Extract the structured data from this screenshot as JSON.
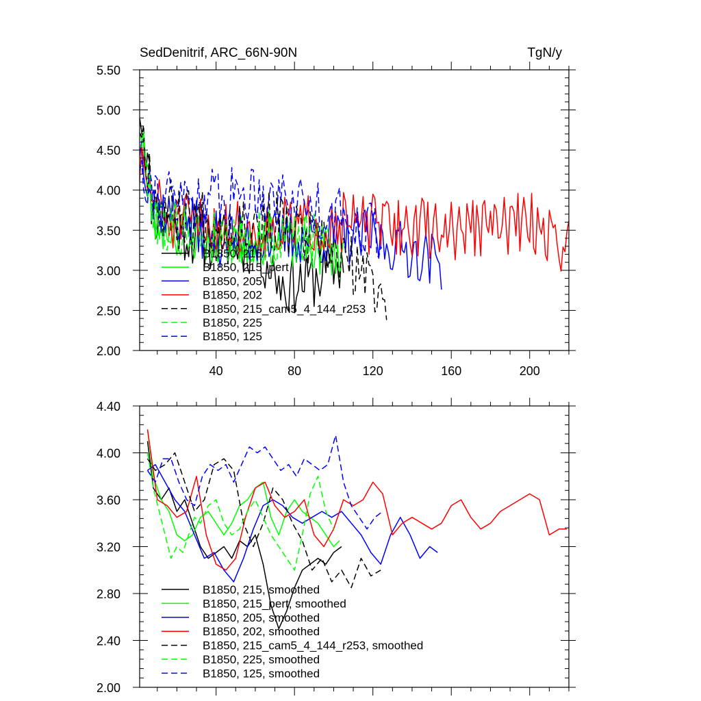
{
  "chart_data": [
    {
      "type": "line",
      "title": "SedDenitrif, ARC_66N-90N",
      "units": "TgN/y",
      "xlabel": "",
      "ylabel": "",
      "xlim": [
        1,
        220
      ],
      "ylim": [
        2.0,
        5.5
      ],
      "xticks": [
        40,
        80,
        120,
        160,
        200
      ],
      "xtick_labels": [
        "40",
        "80",
        "120",
        "160",
        "200"
      ],
      "yticks": [
        2.0,
        2.5,
        3.0,
        3.5,
        4.0,
        4.5,
        5.0,
        5.5
      ],
      "ytick_labels": [
        "2.00",
        "2.50",
        "3.00",
        "3.50",
        "4.00",
        "4.50",
        "5.00",
        "5.50"
      ],
      "legend_position": "bottom-left",
      "series": [
        {
          "name": "B1850, 215",
          "color": "#000000",
          "dash": "solid",
          "seed": 11,
          "n": 105,
          "base": [
            [
              1,
              5.1
            ],
            [
              8,
              3.7
            ],
            [
              30,
              3.4
            ],
            [
              60,
              3.3
            ],
            [
              75,
              2.8
            ],
            [
              90,
              2.9
            ],
            [
              105,
              3.1
            ]
          ],
          "amp": 0.38
        },
        {
          "name": "B1850, 215_pert",
          "color": "#00ff00",
          "dash": "solid",
          "seed": 23,
          "n": 105,
          "base": [
            [
              1,
              4.9
            ],
            [
              8,
              3.6
            ],
            [
              35,
              3.4
            ],
            [
              70,
              3.4
            ],
            [
              105,
              3.2
            ]
          ],
          "amp": 0.35
        },
        {
          "name": "B1850, 205",
          "color": "#0000ff",
          "dash": "solid",
          "seed": 37,
          "n": 155,
          "base": [
            [
              1,
              4.6
            ],
            [
              10,
              3.8
            ],
            [
              40,
              3.4
            ],
            [
              80,
              3.4
            ],
            [
              120,
              3.4
            ],
            [
              155,
              3.1
            ]
          ],
          "amp": 0.35
        },
        {
          "name": "B1850, 202",
          "color": "#ff0000",
          "dash": "solid",
          "seed": 51,
          "n": 220,
          "base": [
            [
              1,
              4.3
            ],
            [
              15,
              3.6
            ],
            [
              60,
              3.5
            ],
            [
              100,
              3.6
            ],
            [
              160,
              3.5
            ],
            [
              200,
              3.6
            ],
            [
              220,
              3.3
            ]
          ],
          "amp": 0.38
        },
        {
          "name": "B1850, 215_cam5_4_144_r253",
          "color": "#000000",
          "dash": "dashed",
          "seed": 67,
          "n": 127,
          "base": [
            [
              1,
              4.9
            ],
            [
              10,
              3.8
            ],
            [
              40,
              3.6
            ],
            [
              70,
              3.6
            ],
            [
              100,
              3.2
            ],
            [
              127,
              2.7
            ]
          ],
          "amp": 0.4
        },
        {
          "name": "B1850, 225",
          "color": "#00ff00",
          "dash": "dashed",
          "seed": 79,
          "n": 100,
          "base": [
            [
              1,
              4.7
            ],
            [
              10,
              3.6
            ],
            [
              40,
              3.4
            ],
            [
              80,
              3.4
            ],
            [
              100,
              3.3
            ]
          ],
          "amp": 0.35
        },
        {
          "name": "B1850, 125",
          "color": "#0000ff",
          "dash": "dashed",
          "seed": 91,
          "n": 125,
          "base": [
            [
              1,
              4.4
            ],
            [
              10,
              3.9
            ],
            [
              40,
              3.9
            ],
            [
              60,
              4.0
            ],
            [
              80,
              3.9
            ],
            [
              100,
              3.7
            ],
            [
              125,
              3.5
            ]
          ],
          "amp": 0.38
        }
      ]
    },
    {
      "type": "line",
      "title": "",
      "units": "",
      "xlabel": "",
      "ylabel": "",
      "xlim": [
        1,
        220
      ],
      "ylim": [
        2.0,
        4.4
      ],
      "xticks": [
        40,
        80,
        120,
        160,
        200
      ],
      "xtick_labels": [],
      "yticks": [
        2.0,
        2.4,
        2.8,
        3.2,
        3.6,
        4.0,
        4.4
      ],
      "ytick_labels": [
        "2.00",
        "2.40",
        "2.80",
        "3.20",
        "3.60",
        "4.00",
        "4.40"
      ],
      "legend_position": "bottom-left",
      "series": [
        {
          "name": "B1850, 215, smoothed",
          "color": "#000000",
          "dash": "solid",
          "x": [
            5,
            8,
            12,
            16,
            20,
            24,
            28,
            32,
            36,
            40,
            44,
            48,
            52,
            56,
            60,
            64,
            68,
            72,
            76,
            80,
            84,
            88,
            92,
            96,
            100,
            104
          ],
          "y": [
            4.1,
            3.7,
            3.6,
            3.7,
            3.5,
            3.6,
            3.4,
            3.2,
            3.1,
            3.15,
            3.2,
            3.1,
            3.25,
            3.2,
            3.3,
            3.05,
            2.7,
            2.5,
            2.65,
            2.85,
            3.0,
            3.05,
            3.1,
            3.05,
            3.15,
            3.2
          ]
        },
        {
          "name": "B1850, 215_pert, smoothed",
          "color": "#00ff00",
          "dash": "solid",
          "x": [
            5,
            8,
            12,
            16,
            20,
            24,
            28,
            32,
            36,
            40,
            44,
            48,
            52,
            56,
            60,
            64,
            68,
            72,
            76,
            80,
            84,
            88,
            92,
            96,
            100,
            103
          ],
          "y": [
            4.2,
            3.8,
            3.6,
            3.5,
            3.3,
            3.25,
            3.3,
            3.45,
            3.5,
            3.4,
            3.3,
            3.4,
            3.55,
            3.6,
            3.7,
            3.75,
            3.45,
            3.3,
            3.5,
            3.6,
            3.5,
            3.45,
            3.4,
            3.3,
            3.2,
            3.25
          ]
        },
        {
          "name": "B1850, 205, smoothed",
          "color": "#0000ff",
          "dash": "solid",
          "x": [
            5,
            9,
            14,
            19,
            24,
            29,
            34,
            39,
            44,
            49,
            54,
            59,
            64,
            69,
            74,
            79,
            84,
            89,
            94,
            99,
            104,
            109,
            114,
            119,
            124,
            129,
            134,
            139,
            144,
            149,
            153
          ],
          "y": [
            3.85,
            3.9,
            3.75,
            3.6,
            3.5,
            3.3,
            3.1,
            3.15,
            3.0,
            2.9,
            3.1,
            3.35,
            3.55,
            3.6,
            3.55,
            3.45,
            3.4,
            3.45,
            3.5,
            3.45,
            3.5,
            3.4,
            3.3,
            3.15,
            3.05,
            3.3,
            3.45,
            3.3,
            3.1,
            3.2,
            3.15
          ]
        },
        {
          "name": "B1850, 202, smoothed",
          "color": "#ff0000",
          "dash": "solid",
          "x": [
            5,
            10,
            15,
            20,
            25,
            30,
            35,
            40,
            45,
            50,
            55,
            60,
            65,
            70,
            75,
            80,
            85,
            90,
            95,
            100,
            105,
            110,
            115,
            120,
            125,
            130,
            135,
            140,
            145,
            150,
            155,
            160,
            165,
            170,
            175,
            180,
            185,
            190,
            195,
            200,
            205,
            210,
            215,
            219
          ],
          "y": [
            4.2,
            3.6,
            3.55,
            3.45,
            3.5,
            3.8,
            3.3,
            3.05,
            3.0,
            3.1,
            3.45,
            3.7,
            3.75,
            3.55,
            3.45,
            3.5,
            3.6,
            3.3,
            3.2,
            3.35,
            3.6,
            3.55,
            3.6,
            3.75,
            3.65,
            3.3,
            3.4,
            3.45,
            3.4,
            3.35,
            3.4,
            3.55,
            3.6,
            3.45,
            3.35,
            3.4,
            3.5,
            3.55,
            3.6,
            3.65,
            3.6,
            3.3,
            3.35,
            3.35
          ]
        },
        {
          "name": "B1850, 215_cam5_4_144_r253, smoothed",
          "color": "#000000",
          "dash": "dashed",
          "x": [
            5,
            9,
            14,
            19,
            24,
            29,
            34,
            39,
            44,
            49,
            54,
            59,
            64,
            69,
            74,
            79,
            84,
            89,
            94,
            99,
            104,
            109,
            114,
            119,
            124
          ],
          "y": [
            3.95,
            3.85,
            3.9,
            4.0,
            3.75,
            3.5,
            3.6,
            3.9,
            3.95,
            3.85,
            3.4,
            3.2,
            3.4,
            3.7,
            3.6,
            3.4,
            3.25,
            3.0,
            3.1,
            2.9,
            3.0,
            2.85,
            3.1,
            2.95,
            3.0
          ]
        },
        {
          "name": "B1850, 225, smoothed",
          "color": "#00ff00",
          "dash": "dashed",
          "x": [
            5,
            8,
            11,
            14,
            17,
            20,
            23,
            26,
            29,
            32,
            36,
            40,
            44,
            48,
            52,
            56,
            60,
            64,
            68,
            72,
            76,
            80,
            84,
            88,
            92,
            96,
            100
          ],
          "y": [
            4.0,
            3.7,
            3.5,
            3.3,
            3.1,
            3.2,
            3.15,
            3.3,
            3.45,
            3.4,
            3.55,
            3.6,
            3.4,
            3.3,
            3.35,
            3.5,
            3.6,
            3.45,
            3.3,
            3.2,
            3.1,
            3.0,
            3.3,
            3.65,
            3.8,
            3.5,
            3.35
          ]
        },
        {
          "name": "B1850, 125, smoothed",
          "color": "#0000ff",
          "dash": "dashed",
          "x": [
            5,
            9,
            13,
            17,
            21,
            25,
            29,
            33,
            37,
            41,
            45,
            49,
            53,
            57,
            61,
            65,
            69,
            73,
            77,
            81,
            85,
            89,
            93,
            97,
            101,
            105,
            109,
            113,
            117,
            121,
            125
          ],
          "y": [
            3.85,
            3.75,
            3.95,
            3.95,
            3.75,
            3.6,
            3.55,
            3.8,
            3.9,
            3.85,
            3.9,
            3.75,
            3.9,
            4.05,
            4.0,
            4.05,
            3.95,
            3.85,
            3.9,
            3.8,
            3.95,
            3.9,
            3.85,
            3.9,
            4.15,
            3.75,
            3.55,
            3.45,
            3.35,
            3.45,
            3.5
          ]
        }
      ]
    }
  ]
}
